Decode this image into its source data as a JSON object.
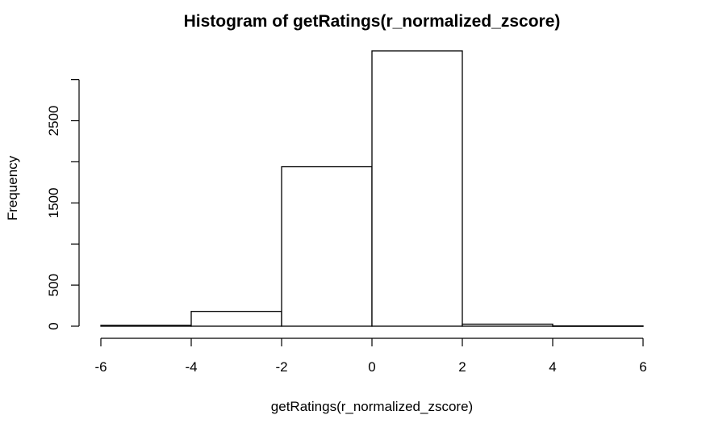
{
  "chart_data": {
    "type": "bar",
    "title": "Histogram of getRatings(r_normalized_zscore)",
    "xlabel": "getRatings(r_normalized_zscore)",
    "ylabel": "Frequency",
    "bins": [
      {
        "from": -6,
        "to": -4,
        "value": 10
      },
      {
        "from": -4,
        "to": -2,
        "value": 180
      },
      {
        "from": -2,
        "to": 0,
        "value": 1940
      },
      {
        "from": 0,
        "to": 2,
        "value": 3350
      },
      {
        "from": 2,
        "to": 4,
        "value": 25
      },
      {
        "from": 4,
        "to": 6,
        "value": 3
      }
    ],
    "xlim": [
      -6,
      6
    ],
    "ylim": [
      0,
      3350
    ],
    "x_ticks": [
      -6,
      -4,
      -2,
      0,
      2,
      4,
      6
    ],
    "y_ticks": [
      0,
      500,
      1000,
      1500,
      2000,
      2500,
      3000
    ],
    "y_tick_labels": [
      "0",
      "500",
      "1500",
      "2500"
    ],
    "grid": false,
    "legend": "none",
    "colors": {
      "bar_fill": "#ffffff",
      "bar_stroke": "#000000",
      "axis": "#000000",
      "text": "#000000"
    }
  }
}
